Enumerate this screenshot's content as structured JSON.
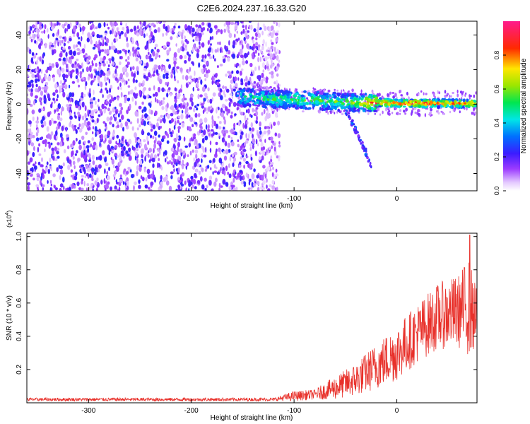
{
  "title": "C2E6.2024.237.16.33.G20",
  "chart_data": [
    {
      "type": "heatmap",
      "panel": "spectrogram",
      "xlabel": "Height of straight line (km)",
      "ylabel": "Frequency (Hz)",
      "xlim": [
        -360,
        78
      ],
      "ylim": [
        -50,
        48
      ],
      "x_ticks": [
        -300,
        -200,
        -100,
        0
      ],
      "x_tick_labels": [
        "-300",
        "-200",
        "-100",
        "0"
      ],
      "y_ticks": [
        -40,
        -20,
        0,
        20,
        40
      ],
      "y_tick_labels": [
        "-40",
        "-20",
        "0",
        "20",
        "40"
      ],
      "colorbar": {
        "label": "Normalized spectral amplitude",
        "range": [
          0,
          1
        ],
        "ticks": [
          0.0,
          0.2,
          0.4,
          0.6,
          0.8
        ],
        "tick_labels": [
          "0.0",
          "0.2",
          "0.4",
          "0.6",
          "0.8"
        ],
        "colormap": "rainbow (white-violet-blue-cyan-green-yellow-red-magenta)"
      },
      "features": {
        "noise_region_x": [
          -360,
          -122
        ],
        "noise_amplitude_range": [
          0.05,
          0.25
        ],
        "signal_start_x": -155,
        "signal_track": [
          {
            "x": -155,
            "y": 4,
            "amp": 0.45
          },
          {
            "x": -120,
            "y": 3,
            "amp": 0.5
          },
          {
            "x": -90,
            "y": 2.5,
            "amp": 0.55
          },
          {
            "x": -60,
            "y": 1.5,
            "amp": 0.55
          },
          {
            "x": -40,
            "y": 1,
            "amp": 0.6
          },
          {
            "x": -20,
            "y": 1,
            "amp": 0.85
          },
          {
            "x": 0,
            "y": 0.5,
            "amp": 0.9
          },
          {
            "x": 30,
            "y": 0.5,
            "amp": 0.85
          },
          {
            "x": 60,
            "y": 0.5,
            "amp": 0.8
          },
          {
            "x": 78,
            "y": 0.5,
            "amp": 0.75
          }
        ],
        "secondary_track": [
          {
            "x": -50,
            "y": -3
          },
          {
            "x": -40,
            "y": -15
          },
          {
            "x": -30,
            "y": -28
          },
          {
            "x": -25,
            "y": -36
          }
        ]
      }
    },
    {
      "type": "line",
      "panel": "snr",
      "xlabel": "Height of straight line (km)",
      "ylabel": "SNR (10 * v/v)",
      "y_multiplier": "(x10",
      "y_multiplier_exp": "4",
      "y_multiplier_close": ")",
      "xlim": [
        -360,
        78
      ],
      "ylim": [
        0,
        1.02
      ],
      "x_ticks": [
        -300,
        -200,
        -100,
        0
      ],
      "x_tick_labels": [
        "-300",
        "-200",
        "-100",
        "0"
      ],
      "y_ticks": [
        0.2,
        0.4,
        0.6,
        0.8,
        1.0
      ],
      "y_tick_labels": [
        "0.2",
        "0.4",
        "0.6",
        "0.8",
        "1.0"
      ],
      "color": "#e8302a",
      "series_envelope": [
        {
          "x": -360,
          "mean": 0.02,
          "spread": 0.01
        },
        {
          "x": -120,
          "mean": 0.02,
          "spread": 0.01
        },
        {
          "x": -100,
          "mean": 0.04,
          "spread": 0.03
        },
        {
          "x": -80,
          "mean": 0.05,
          "spread": 0.03
        },
        {
          "x": -60,
          "mean": 0.09,
          "spread": 0.07
        },
        {
          "x": -40,
          "mean": 0.14,
          "spread": 0.1
        },
        {
          "x": -20,
          "mean": 0.22,
          "spread": 0.14
        },
        {
          "x": 0,
          "mean": 0.3,
          "spread": 0.17
        },
        {
          "x": 20,
          "mean": 0.42,
          "spread": 0.18
        },
        {
          "x": 40,
          "mean": 0.52,
          "spread": 0.2
        },
        {
          "x": 60,
          "mean": 0.55,
          "spread": 0.22
        },
        {
          "x": 70,
          "mean": 0.58,
          "spread": 0.3
        },
        {
          "x": 78,
          "mean": 0.5,
          "spread": 0.18
        }
      ],
      "peak": {
        "x": 71,
        "y": 1.01
      }
    }
  ]
}
